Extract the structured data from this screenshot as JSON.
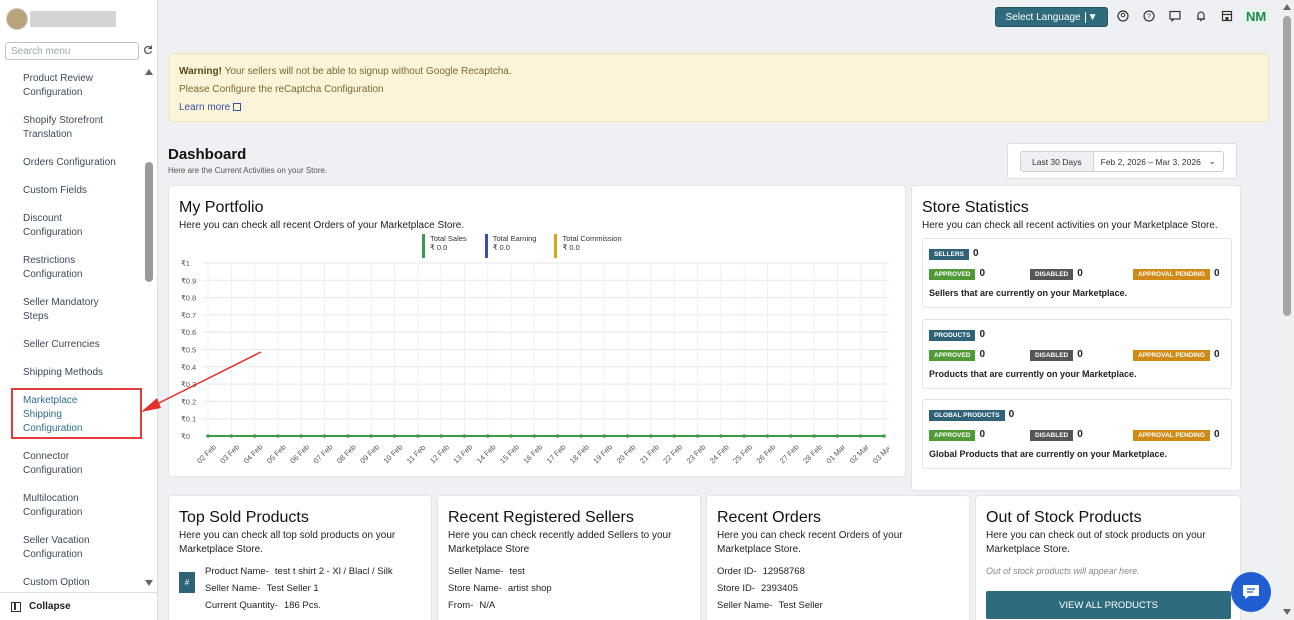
{
  "sidebar": {
    "search_placeholder": "Search menu",
    "items": [
      {
        "label": "Product Review Configuration"
      },
      {
        "label": "Shopify Storefront Translation"
      },
      {
        "label": "Orders Configuration"
      },
      {
        "label": "Custom Fields"
      },
      {
        "label": "Discount Configuration"
      },
      {
        "label": "Restrictions Configuration"
      },
      {
        "label": "Seller Mandatory Steps"
      },
      {
        "label": "Seller Currencies"
      },
      {
        "label": "Shipping Methods"
      },
      {
        "label": "Marketplace Shipping Configuration"
      },
      {
        "label": "Connector Configuration"
      },
      {
        "label": "Multilocation Configuration"
      },
      {
        "label": "Seller Vacation Configuration"
      },
      {
        "label": "Custom Option Configuration"
      }
    ],
    "collapse_label": "Collapse"
  },
  "topbar": {
    "language_label": "Select Language",
    "user_initials": "NM"
  },
  "warning": {
    "title": "Warning!",
    "line1": " Your sellers will not be able to signup without Google Recaptcha.",
    "line2": "Please Configure the reCaptcha Configuration",
    "link": "Learn more"
  },
  "dashboard": {
    "title": "Dashboard",
    "subtitle": "Here are the Current Activities on your Store.",
    "range_label": "Last 30 Days",
    "range": "Feb 2, 2026 – Mar 3, 2026"
  },
  "portfolio": {
    "title": "My Portfolio",
    "subtitle": "Here you can check all recent Orders of your Marketplace Store."
  },
  "chart_data": {
    "type": "line",
    "series": [
      {
        "name": "Total Sales",
        "value_label": "₹ 0.0",
        "color": "#3c9a48",
        "values": [
          0,
          0,
          0,
          0,
          0,
          0,
          0,
          0,
          0,
          0,
          0,
          0,
          0,
          0,
          0,
          0,
          0,
          0,
          0,
          0,
          0,
          0,
          0,
          0,
          0,
          0,
          0,
          0,
          0,
          0
        ]
      },
      {
        "name": "Total Earning",
        "value_label": "₹ 0.0",
        "color": "#3b4fb0",
        "values": [
          0,
          0,
          0,
          0,
          0,
          0,
          0,
          0,
          0,
          0,
          0,
          0,
          0,
          0,
          0,
          0,
          0,
          0,
          0,
          0,
          0,
          0,
          0,
          0,
          0,
          0,
          0,
          0,
          0,
          0
        ]
      },
      {
        "name": "Total Commission",
        "value_label": "₹ 0.0",
        "color": "#d9a21f",
        "values": [
          0,
          0,
          0,
          0,
          0,
          0,
          0,
          0,
          0,
          0,
          0,
          0,
          0,
          0,
          0,
          0,
          0,
          0,
          0,
          0,
          0,
          0,
          0,
          0,
          0,
          0,
          0,
          0,
          0,
          0
        ]
      }
    ],
    "x": [
      "02 Feb",
      "03 Feb",
      "04 Feb",
      "05 Feb",
      "06 Feb",
      "07 Feb",
      "08 Feb",
      "09 Feb",
      "10 Feb",
      "11 Feb",
      "12 Feb",
      "13 Feb",
      "14 Feb",
      "15 Feb",
      "16 Feb",
      "17 Feb",
      "18 Feb",
      "19 Feb",
      "20 Feb",
      "21 Feb",
      "22 Feb",
      "23 Feb",
      "24 Feb",
      "25 Feb",
      "26 Feb",
      "27 Feb",
      "28 Feb",
      "01 Mar",
      "02 Mar",
      "03 Mar"
    ],
    "y_ticks": [
      "₹1",
      "₹0.9",
      "₹0.8",
      "₹0.7",
      "₹0.6",
      "₹0.5",
      "₹0.4",
      "₹0.3",
      "₹0.2",
      "₹0.1",
      "₹0"
    ],
    "ylim": [
      0,
      1
    ],
    "grid": true
  },
  "stats": {
    "title": "Store Statistics",
    "subtitle": "Here you can check all recent activities on your Marketplace Store.",
    "approved": "Approved",
    "disabled": "Disabled",
    "pending": "Approval Pending",
    "boxes": [
      {
        "label": "SELLERS",
        "total": "0",
        "approved": "0",
        "disabled": "0",
        "pending": "0",
        "desc": "Sellers that are currently on your Marketplace."
      },
      {
        "label": "PRODUCTS",
        "total": "0",
        "approved": "0",
        "disabled": "0",
        "pending": "0",
        "desc": "Products that are currently on your Marketplace."
      },
      {
        "label": "GLOBAL PRODUCTS",
        "total": "0",
        "approved": "0",
        "disabled": "0",
        "pending": "0",
        "desc": "Global Products that are currently on your Marketplace."
      }
    ]
  },
  "top_sold": {
    "title": "Top Sold Products",
    "subtitle": "Here you can check all top sold products on your Marketplace Store.",
    "hash": "#",
    "rows": [
      {
        "k": "Product Name-",
        "v": "test t shirt 2 - Xl / Blacl / Silk"
      },
      {
        "k": "Seller Name-",
        "v": "Test Seller 1"
      },
      {
        "k": "Current Quantity-",
        "v": "186 Pcs."
      }
    ]
  },
  "recent_sellers": {
    "title": "Recent Registered Sellers",
    "subtitle": "Here you can check recently added Sellers to your Marketplace Store",
    "rows": [
      {
        "k": "Seller Name-",
        "v": "test"
      },
      {
        "k": "Store Name-",
        "v": "artist shop"
      },
      {
        "k": "From-",
        "v": "N/A"
      }
    ]
  },
  "recent_orders": {
    "title": "Recent Orders",
    "subtitle": "Here you can check recent Orders of your Marketplace Store.",
    "rows": [
      {
        "k": "Order ID-",
        "v": "12958768"
      },
      {
        "k": "Store ID-",
        "v": "2393405"
      },
      {
        "k": "Seller Name-",
        "v": "Test Seller"
      }
    ]
  },
  "out_of_stock": {
    "title": "Out of Stock Products",
    "subtitle": "Here you can check out of stock products on your Marketplace Store.",
    "empty_note": "Out of stock products will appear here.",
    "button": "VIEW ALL PRODUCTS"
  }
}
